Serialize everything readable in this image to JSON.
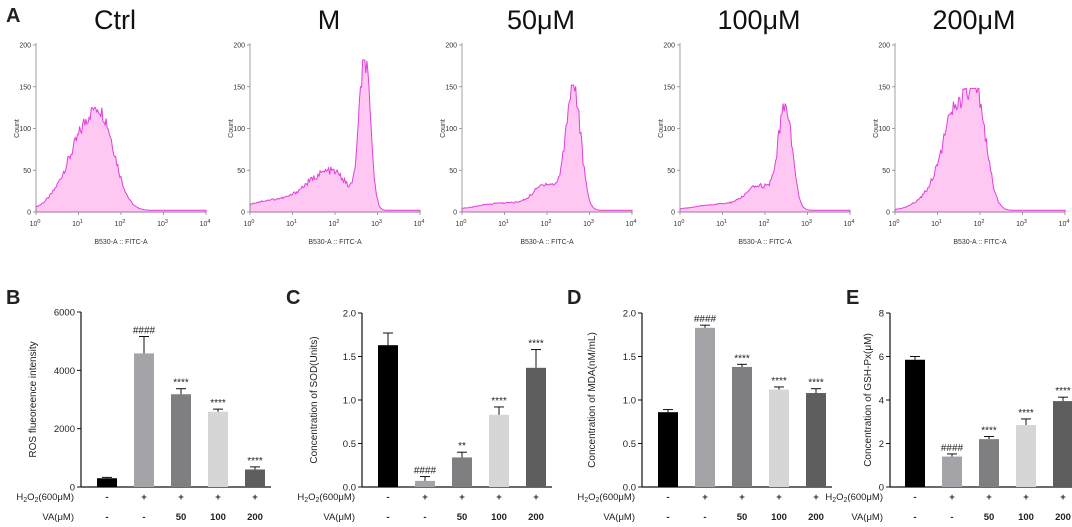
{
  "colors": {
    "hist_fill": "#ffc8f2",
    "hist_line": "#e040d8",
    "bars": [
      "#000000",
      "#a3a3a8",
      "#7f7f82",
      "#d6d6d6",
      "#5e5e5e"
    ]
  },
  "panel_labels": [
    "A",
    "B",
    "C",
    "D",
    "E"
  ],
  "histograms": {
    "xlabel": "B530-A :: FITC-A",
    "ylabel": "Count",
    "x_ticks": [
      "10",
      "10",
      "10",
      "10",
      "10"
    ],
    "x_tick_exponents": [
      "0",
      "1",
      "2",
      "3",
      "4"
    ],
    "panels": [
      {
        "title": "Ctrl",
        "ylim": [
          0,
          200
        ],
        "y_ticks": [
          "0",
          "50",
          "100",
          "150",
          "200"
        ],
        "peak_log10": 1.55,
        "peak_count": 125
      },
      {
        "title": "M",
        "ylim": [
          0,
          200
        ],
        "y_ticks": [
          "0",
          "50",
          "100",
          "150",
          "200"
        ],
        "peak_log10": 2.7,
        "peak_count": 182
      },
      {
        "title": "50μM",
        "ylim": [
          0,
          200
        ],
        "y_ticks": [
          "0",
          "50",
          "100",
          "150",
          "200"
        ],
        "peak_log10": 2.6,
        "peak_count": 152
      },
      {
        "title": "100μM",
        "ylim": [
          0,
          200
        ],
        "y_ticks": [
          "0",
          "50",
          "100",
          "150",
          "200"
        ],
        "peak_log10": 2.5,
        "peak_count": 130
      },
      {
        "title": "200μM",
        "ylim": [
          0,
          200
        ],
        "y_ticks": [
          "0",
          "50",
          "100",
          "150",
          "200"
        ],
        "peak_log10": 1.85,
        "peak_count": 148
      }
    ]
  },
  "row_labels": {
    "h2o2": "H2O2(600μM)",
    "va": "VA(μM)"
  },
  "h2o2_signs": [
    "-",
    "+",
    "+",
    "+",
    "+"
  ],
  "va_values": [
    "-",
    "-",
    "50",
    "100",
    "200"
  ],
  "chart_data": [
    {
      "type": "bar",
      "panel": "B",
      "categories": [
        "Ctrl",
        "M",
        "50",
        "100",
        "200"
      ],
      "values": [
        300,
        4580,
        3180,
        2580,
        600
      ],
      "errors": [
        30,
        580,
        190,
        90,
        90
      ],
      "annotations": [
        "",
        "####",
        "****",
        "****",
        "****"
      ],
      "ylabel": "ROS flueoreence intensity",
      "ylim": [
        0,
        6000
      ],
      "y_ticks": [
        "0",
        "2000",
        "4000",
        "6000"
      ]
    },
    {
      "type": "bar",
      "panel": "C",
      "categories": [
        "Ctrl",
        "M",
        "50",
        "100",
        "200"
      ],
      "values": [
        1.63,
        0.07,
        0.34,
        0.83,
        1.37
      ],
      "errors": [
        0.14,
        0.05,
        0.06,
        0.09,
        0.21
      ],
      "annotations": [
        "",
        "####",
        "**",
        "****",
        "****"
      ],
      "ylabel": "Concentration of SOD(Units)",
      "ylim": [
        0,
        2.0
      ],
      "y_ticks": [
        "0.0",
        "0.5",
        "1.0",
        "1.5",
        "2.0"
      ]
    },
    {
      "type": "bar",
      "panel": "D",
      "categories": [
        "Ctrl",
        "M",
        "50",
        "100",
        "200"
      ],
      "values": [
        0.86,
        1.83,
        1.38,
        1.12,
        1.08
      ],
      "errors": [
        0.03,
        0.03,
        0.03,
        0.03,
        0.05
      ],
      "annotations": [
        "",
        "####",
        "****",
        "****",
        "****"
      ],
      "ylabel": "Concentration of MDA(nM/mL)",
      "ylim": [
        0,
        2.0
      ],
      "y_ticks": [
        "0.0",
        "0.5",
        "1.0",
        "1.5",
        "2.0"
      ]
    },
    {
      "type": "bar",
      "panel": "E",
      "categories": [
        "Ctrl",
        "M",
        "50",
        "100",
        "200"
      ],
      "values": [
        5.85,
        1.4,
        2.2,
        2.85,
        3.95
      ],
      "errors": [
        0.15,
        0.12,
        0.12,
        0.28,
        0.18
      ],
      "annotations": [
        "",
        "####",
        "****",
        "****",
        "****"
      ],
      "ylabel": "Concentration of GSH-Px(μM)",
      "ylim": [
        0,
        8
      ],
      "y_ticks": [
        "0",
        "2",
        "4",
        "6",
        "8"
      ]
    }
  ]
}
